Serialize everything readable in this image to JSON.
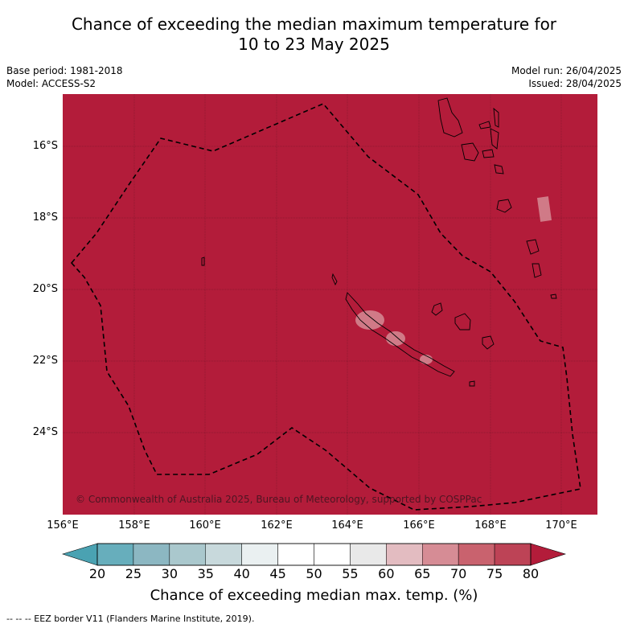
{
  "title_line1": "Chance of exceeding the median maximum temperature for",
  "title_line2": "10 to 23 May 2025",
  "meta": {
    "base_period": "Base period: 1981-2018",
    "model": "Model: ACCESS-S2",
    "model_run": "Model run: 26/04/2025",
    "issued": "Issued: 28/04/2025"
  },
  "map": {
    "lon_range": [
      156,
      171
    ],
    "lat_range": [
      -26,
      -14.6
    ],
    "x_ticks": [
      "156°E",
      "158°E",
      "160°E",
      "162°E",
      "164°E",
      "166°E",
      "168°E",
      "170°E"
    ],
    "y_ticks": [
      "16°S",
      "18°S",
      "20°S",
      "22°S",
      "24°S"
    ],
    "fill_color": "#b31c3a",
    "copyright": "© Commonwealth of Australia 2025, Bureau of Meteorology, supported by COSPPac"
  },
  "colorbar": {
    "ticks": [
      "20",
      "25",
      "30",
      "35",
      "40",
      "45",
      "50",
      "55",
      "60",
      "65",
      "70",
      "75",
      "80"
    ],
    "colors": [
      "#67aebc",
      "#8cb7c2",
      "#aac8cd",
      "#c8d9dc",
      "#eaf0f1",
      "#ffffff",
      "#ffffff",
      "#e9e9e9",
      "#e3bcc1",
      "#d68c95",
      "#c9626e",
      "#bd4356"
    ],
    "low_color": "#4aa2b2",
    "high_color": "#b31c3a",
    "label": "Chance of exceeding median max. temp. (%)"
  },
  "footer": "--  --  -- EEZ border V11 (Flanders Marine Institute, 2019)."
}
